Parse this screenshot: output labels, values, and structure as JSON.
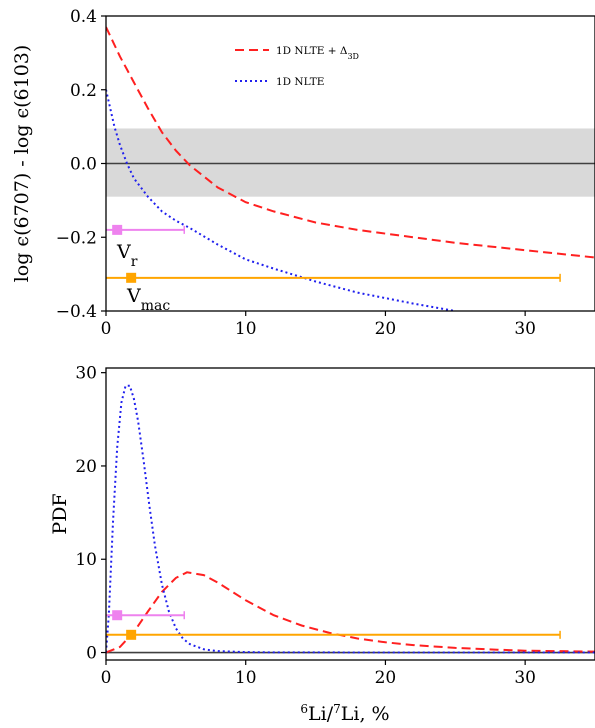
{
  "chart_data": [
    {
      "type": "line",
      "ylabel": "log ϵ(6707) - log ϵ(6103)",
      "xlim": [
        0,
        35
      ],
      "ylim": [
        -0.4,
        0.4
      ],
      "xticks": [
        "0",
        "10",
        "20",
        "30"
      ],
      "yticks": [
        "−0.4",
        "−0.2",
        "0.0",
        "0.2",
        "0.4"
      ],
      "legend_position": "top-right",
      "reference_line": {
        "y": 0.0,
        "color": "#404040"
      },
      "shaded_band": {
        "y_from": -0.09,
        "y_to": 0.095,
        "color": "#d9d9d9"
      },
      "series": [
        {
          "name": "1D NLTE + Δ",
          "name_sub": "3D",
          "color": "#ff2020",
          "dash": "dashed",
          "x": [
            0,
            0.5,
            1,
            1.5,
            2,
            3,
            4,
            5,
            6,
            8,
            10,
            12,
            15,
            18,
            20,
            25,
            30,
            35
          ],
          "y": [
            0.37,
            0.33,
            0.29,
            0.255,
            0.22,
            0.15,
            0.085,
            0.035,
            -0.005,
            -0.065,
            -0.105,
            -0.13,
            -0.16,
            -0.18,
            -0.19,
            -0.215,
            -0.235,
            -0.255
          ]
        },
        {
          "name": "1D NLTE",
          "color": "#2020ee",
          "dash": "dotted",
          "x": [
            0,
            0.3,
            0.6,
            1,
            1.5,
            2,
            3,
            4,
            5,
            6,
            8,
            10,
            12,
            15,
            18,
            20,
            22,
            25
          ],
          "y": [
            0.2,
            0.15,
            0.1,
            0.05,
            0.0,
            -0.04,
            -0.09,
            -0.13,
            -0.155,
            -0.175,
            -0.22,
            -0.26,
            -0.285,
            -0.32,
            -0.35,
            -0.365,
            -0.38,
            -0.4
          ]
        }
      ],
      "markers": [
        {
          "label": "V",
          "sub": "r",
          "x": 0.8,
          "y": -0.18,
          "xmin": 0,
          "xmax": 5.6,
          "color": "#ee82ee"
        },
        {
          "label": "V",
          "sub": "mac",
          "x": 1.8,
          "y": -0.31,
          "xmin": 0,
          "xmax": 32.5,
          "color": "#ffa500"
        }
      ]
    },
    {
      "type": "line",
      "xlabel_base": "Li/",
      "xlabel_mass1": "6",
      "xlabel_mass2": "7",
      "xlabel_end": "Li, %",
      "ylabel": "PDF",
      "xlim": [
        0,
        35
      ],
      "ylim": [
        -0.8,
        30.5
      ],
      "xticks": [
        "0",
        "10",
        "20",
        "30"
      ],
      "yticks": [
        "0",
        "10",
        "20",
        "30"
      ],
      "reference_line": {
        "y": 0.0,
        "color": "#404040"
      },
      "series": [
        {
          "color": "#ff2020",
          "dash": "dashed",
          "x": [
            0,
            1,
            2,
            3,
            4,
            5,
            5.8,
            7,
            8,
            10,
            12,
            14,
            16,
            18,
            20,
            22,
            25,
            28,
            30,
            32,
            35
          ],
          "y": [
            0,
            0.6,
            2.2,
            4.4,
            6.5,
            8.0,
            8.6,
            8.3,
            7.5,
            5.6,
            4.0,
            2.9,
            2.1,
            1.5,
            1.1,
            0.8,
            0.5,
            0.3,
            0.2,
            0.15,
            0.1
          ]
        },
        {
          "color": "#2020ee",
          "dash": "dotted",
          "x": [
            0,
            0.2,
            0.5,
            0.8,
            1.1,
            1.4,
            1.7,
            2.0,
            2.3,
            2.7,
            3.1,
            3.5,
            4.0,
            4.5,
            5.0,
            5.5,
            6.0,
            7.0,
            8.0,
            10,
            12,
            15,
            20,
            25,
            30,
            35
          ],
          "y": [
            0,
            4,
            14,
            22,
            26.8,
            28.6,
            28.6,
            27.2,
            24.8,
            20.5,
            15.8,
            11.5,
            7.3,
            4.4,
            2.6,
            1.5,
            0.9,
            0.35,
            0.15,
            0.05,
            0.02,
            0.01,
            0,
            0,
            0,
            0
          ]
        }
      ],
      "markers": [
        {
          "x": 0.8,
          "y": 4.0,
          "xmin": 0,
          "xmax": 5.6,
          "color": "#ee82ee"
        },
        {
          "x": 1.8,
          "y": 1.9,
          "xmin": 0,
          "xmax": 32.5,
          "color": "#ffa500"
        }
      ]
    }
  ]
}
